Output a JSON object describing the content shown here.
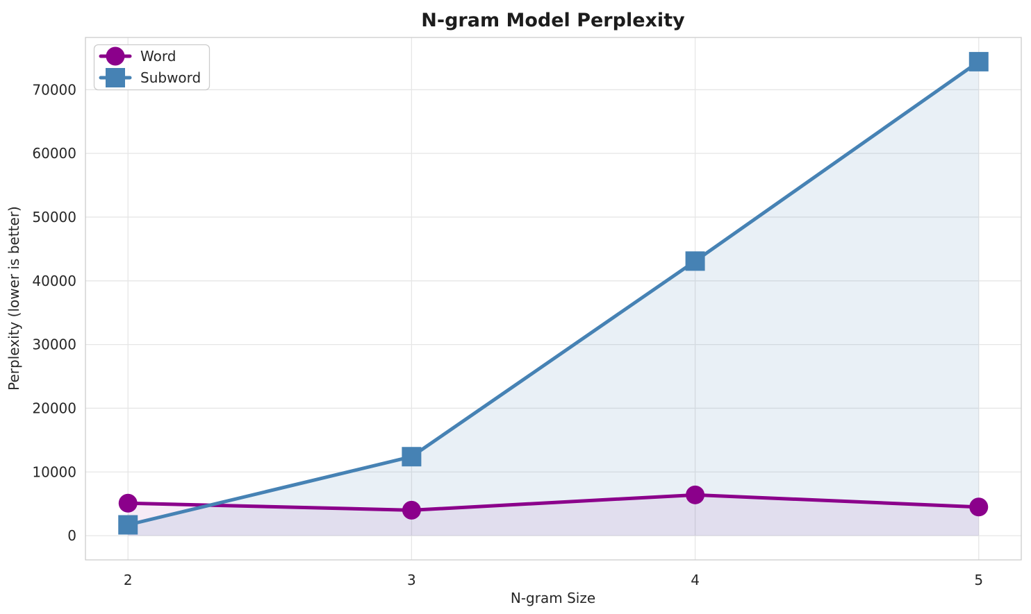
{
  "chart_data": {
    "type": "line",
    "title": "N-gram Model Perplexity",
    "xlabel": "N-gram Size",
    "ylabel": "Perplexity (lower is better)",
    "x": [
      2,
      3,
      4,
      5
    ],
    "xtick_labels": [
      "2",
      "3",
      "4",
      "5"
    ],
    "xlim": [
      1.85,
      5.15
    ],
    "ylim": [
      -3800,
      78200
    ],
    "yticks": [
      0,
      10000,
      20000,
      30000,
      40000,
      50000,
      60000,
      70000
    ],
    "ytick_labels": [
      "0",
      "10000",
      "20000",
      "30000",
      "40000",
      "50000",
      "60000",
      "70000"
    ],
    "grid": true,
    "legend_position": "upper left",
    "series": [
      {
        "name": "Word",
        "marker": "circle",
        "color": "#8B008B",
        "fill_color": "rgba(139,0,139,0.08)",
        "values": [
          5100,
          4000,
          6400,
          4500
        ]
      },
      {
        "name": "Subword",
        "marker": "square",
        "color": "#4682B4",
        "fill_color": "rgba(70,130,180,0.12)",
        "values": [
          1700,
          12400,
          43100,
          74400
        ]
      }
    ],
    "colors": {
      "grid": "#e6e6e6",
      "spine": "#cccccc",
      "text": "#262626",
      "background": "#ffffff",
      "legend_border": "#cccccc"
    }
  }
}
